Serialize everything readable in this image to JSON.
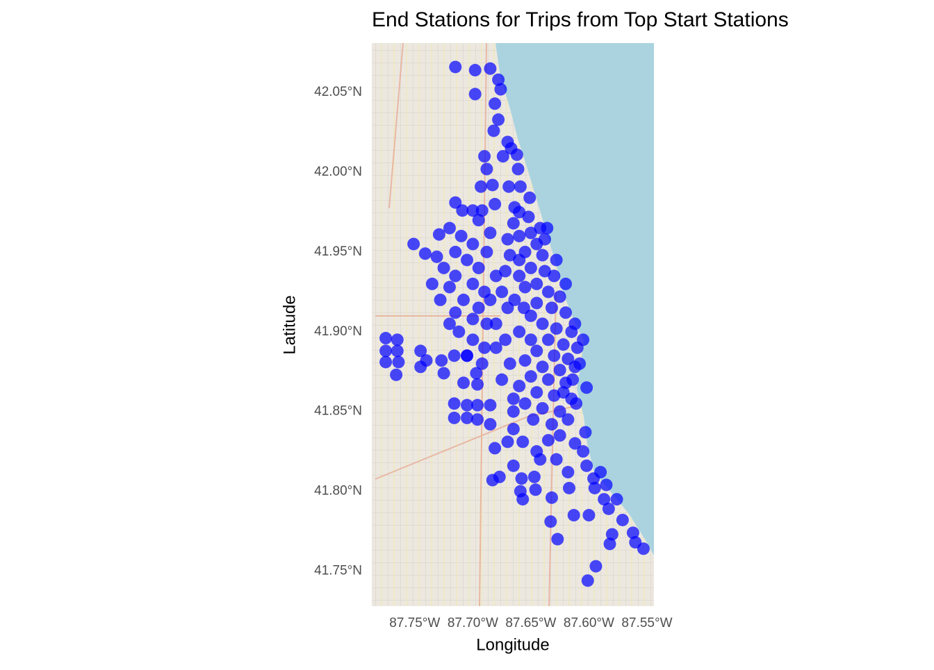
{
  "chart_data": {
    "type": "scatter",
    "title": "End Stations for Trips from Top Start Stations",
    "x_label": "Longitude",
    "y_label": "Latitude",
    "color": "#0000ff",
    "xlim": [
      -87.787,
      -87.544
    ],
    "ylim": [
      41.728,
      42.081
    ],
    "xticks": [
      {
        "value": -87.75,
        "label": "87.75°W"
      },
      {
        "value": -87.7,
        "label": "87.70°W"
      },
      {
        "value": -87.65,
        "label": "87.65°W"
      },
      {
        "value": -87.6,
        "label": "87.60°W"
      },
      {
        "value": -87.55,
        "label": "87.55°W"
      }
    ],
    "yticks": [
      {
        "value": 41.75,
        "label": "41.75°N"
      },
      {
        "value": 41.8,
        "label": "41.80°N"
      },
      {
        "value": 41.85,
        "label": "41.85°N"
      },
      {
        "value": 41.9,
        "label": "41.90°N"
      },
      {
        "value": 41.95,
        "label": "41.95°N"
      },
      {
        "value": 42.0,
        "label": "42.00°N"
      },
      {
        "value": 42.05,
        "label": "42.05°N"
      }
    ],
    "x": [
      -87.715,
      -87.698,
      -87.685,
      -87.678,
      -87.698,
      -87.676,
      -87.681,
      -87.678,
      -87.682,
      -87.67,
      -87.667,
      -87.69,
      -87.674,
      -87.662,
      -87.688,
      -87.661,
      -87.693,
      -87.683,
      -87.669,
      -87.659,
      -87.651,
      -87.715,
      -87.709,
      -87.7,
      -87.692,
      -87.681,
      -87.664,
      -87.636,
      -87.751,
      -87.741,
      -87.731,
      -87.729,
      -87.745,
      -87.775,
      -87.765,
      -87.775,
      -87.765,
      -87.775,
      -87.764,
      -87.766,
      -87.74,
      -87.745,
      -87.727,
      -87.725,
      -87.716,
      -87.705,
      -87.697,
      -87.708,
      -87.696,
      -87.716,
      -87.716,
      -87.705,
      -87.705,
      -87.696,
      -87.696,
      -87.685,
      -87.685,
      -87.681,
      -87.67,
      -87.665,
      -87.657,
      -87.665,
      -87.683,
      -87.677,
      -87.658,
      -87.647,
      -87.659,
      -87.657,
      -87.646,
      -87.642,
      -87.632,
      -87.633,
      -87.627,
      -87.617,
      -87.613,
      -87.6,
      -87.594,
      -87.601,
      -87.582,
      -87.58,
      -87.571,
      -87.562,
      -87.56,
      -87.553,
      -87.576,
      -87.585,
      -87.596,
      -87.602,
      -87.59,
      -87.595,
      -87.587,
      -87.583,
      -87.603,
      -87.602,
      -87.611,
      -87.66,
      -87.65,
      -87.645,
      -87.655,
      -87.64,
      -87.66,
      -87.65,
      -87.638,
      -87.63,
      -87.645,
      -87.655,
      -87.635,
      -87.625,
      -87.645,
      -87.632,
      -87.62,
      -87.65,
      -87.64,
      -87.628,
      -87.615,
      -87.66,
      -87.65,
      -87.635,
      -87.622,
      -87.61,
      -87.645,
      -87.63,
      -87.618,
      -87.655,
      -87.64,
      -87.625,
      -87.612,
      -87.65,
      -87.635,
      -87.62,
      -87.66,
      -87.645,
      -87.63,
      -87.615,
      -87.655,
      -87.64,
      -87.625,
      -87.665,
      -87.648,
      -87.632,
      -87.618,
      -87.66,
      -87.665,
      -87.67,
      -87.668,
      -87.672,
      -87.675,
      -87.67,
      -87.68,
      -87.672,
      -87.68,
      -87.668,
      -87.675,
      -87.665,
      -87.66,
      -87.664,
      -87.656,
      -87.642,
      -87.652,
      -87.638,
      -87.628,
      -87.62,
      -87.612,
      -87.605,
      -87.608,
      -87.614,
      -87.622,
      -87.635,
      -87.625,
      -87.612,
      -87.605,
      -87.645,
      -87.628,
      -87.618,
      -87.72,
      -87.71,
      -87.7,
      -87.715,
      -87.705,
      -87.695,
      -87.725,
      -87.715,
      -87.7,
      -87.69,
      -87.72,
      -87.708,
      -87.695,
      -87.715,
      -87.7,
      -87.688,
      -87.712,
      -87.7,
      -87.69,
      -87.705,
      -87.692,
      -87.695,
      -87.685,
      -87.688,
      -87.68,
      -87.685,
      -87.735,
      -87.728,
      -87.72
    ],
    "values": [
      42.066,
      42.064,
      42.065,
      42.058,
      42.049,
      42.052,
      42.043,
      42.033,
      42.026,
      42.019,
      42.015,
      42.01,
      42.01,
      42.011,
      42.002,
      42.002,
      41.991,
      41.992,
      41.991,
      41.991,
      41.984,
      41.981,
      41.976,
      41.976,
      41.976,
      41.98,
      41.978,
      41.965,
      41.955,
      41.949,
      41.947,
      41.961,
      41.888,
      41.896,
      41.895,
      41.888,
      41.888,
      41.881,
      41.881,
      41.873,
      41.882,
      41.878,
      41.882,
      41.874,
      41.885,
      41.885,
      41.874,
      41.868,
      41.867,
      41.855,
      41.846,
      41.854,
      41.846,
      41.854,
      41.845,
      41.854,
      41.842,
      41.827,
      41.831,
      41.839,
      41.831,
      41.816,
      41.807,
      41.809,
      41.808,
      41.809,
      41.8,
      41.795,
      41.801,
      41.82,
      41.796,
      41.781,
      41.77,
      41.802,
      41.785,
      41.785,
      41.753,
      41.744,
      41.767,
      41.773,
      41.782,
      41.774,
      41.768,
      41.764,
      41.795,
      41.804,
      41.808,
      41.816,
      41.812,
      41.802,
      41.795,
      41.789,
      41.837,
      41.865,
      41.855,
      41.96,
      41.962,
      41.955,
      41.95,
      41.948,
      41.945,
      41.94,
      41.938,
      41.935,
      41.93,
      41.928,
      41.925,
      41.922,
      41.918,
      41.915,
      41.912,
      41.91,
      41.905,
      41.902,
      41.9,
      41.9,
      41.895,
      41.895,
      41.892,
      41.89,
      41.888,
      41.885,
      41.883,
      41.882,
      41.878,
      41.876,
      41.878,
      41.872,
      41.87,
      41.868,
      41.866,
      41.862,
      41.86,
      41.858,
      41.855,
      41.852,
      41.85,
      41.85,
      41.845,
      41.842,
      41.845,
      41.975,
      41.968,
      41.958,
      41.948,
      41.938,
      41.925,
      41.915,
      41.905,
      41.895,
      41.89,
      41.88,
      41.87,
      41.858,
      41.935,
      41.92,
      41.915,
      41.965,
      41.972,
      41.958,
      41.945,
      41.93,
      41.905,
      41.895,
      41.88,
      41.87,
      41.862,
      41.832,
      41.835,
      41.83,
      41.825,
      41.825,
      41.82,
      41.812,
      41.965,
      41.96,
      41.955,
      41.95,
      41.945,
      41.94,
      41.94,
      41.935,
      41.93,
      41.925,
      41.928,
      41.92,
      41.915,
      41.912,
      41.908,
      41.905,
      41.9,
      41.895,
      41.89,
      41.885,
      41.88,
      41.97,
      41.962,
      41.95,
      41.935,
      41.92,
      41.93,
      41.92,
      41.905
    ]
  }
}
